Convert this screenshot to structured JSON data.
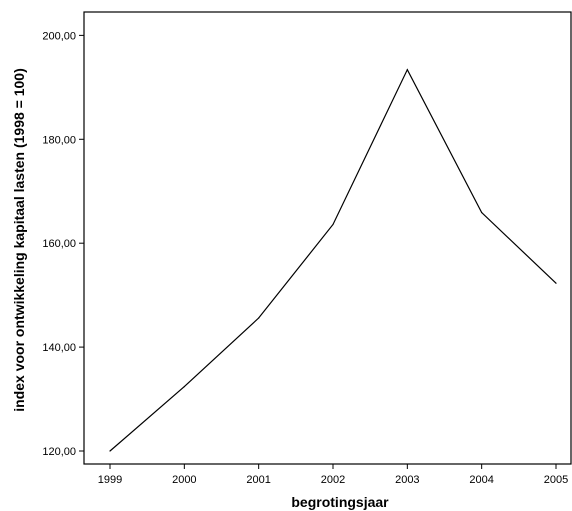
{
  "chart_data": {
    "type": "line",
    "title": "",
    "xlabel": "begrotingsjaar",
    "ylabel": "index voor ontwikkeling kapitaal lasten (1998 = 100)",
    "x": [
      "1999",
      "2000",
      "2001",
      "2002",
      "2003",
      "2004",
      "2005"
    ],
    "series": [
      {
        "values": [
          120.0,
          132.4,
          145.6,
          163.6,
          193.4,
          165.9,
          152.3
        ]
      }
    ],
    "ylim": [
      117.5,
      204.5
    ],
    "yticks": [
      120,
      140,
      160,
      180,
      200
    ],
    "ytick_labels": [
      "120,00",
      "140,00",
      "160,00",
      "180,00",
      "200,00"
    ],
    "grid": false,
    "legend": "none",
    "line_color": "#000000"
  }
}
